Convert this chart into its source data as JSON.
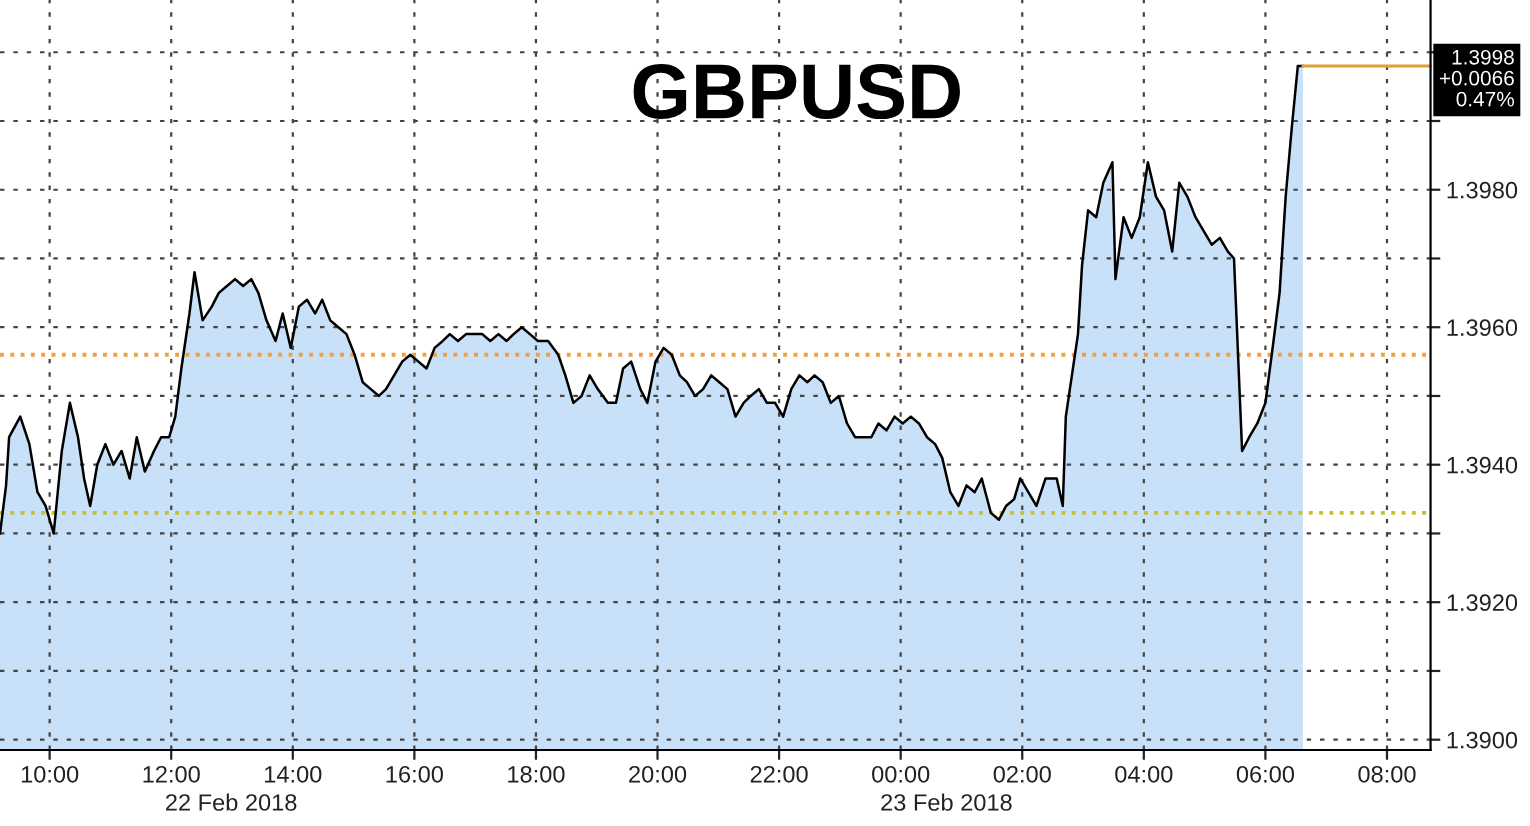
{
  "chart_data": {
    "type": "area",
    "title": "GBPUSD",
    "x": [
      "2018-02-22T09:11",
      "2018-02-22T09:17",
      "2018-02-22T09:20",
      "2018-02-22T09:31",
      "2018-02-22T09:40",
      "2018-02-22T09:48",
      "2018-02-22T09:56",
      "2018-02-22T10:04",
      "2018-02-22T10:12",
      "2018-02-22T10:20",
      "2018-02-22T10:28",
      "2018-02-22T10:34",
      "2018-02-22T10:40",
      "2018-02-22T10:47",
      "2018-02-22T10:55",
      "2018-02-22T11:03",
      "2018-02-22T11:11",
      "2018-02-22T11:19",
      "2018-02-22T11:26",
      "2018-02-22T11:34",
      "2018-02-22T11:43",
      "2018-02-22T11:50",
      "2018-02-22T11:58",
      "2018-02-22T12:04",
      "2018-02-22T12:10",
      "2018-02-22T12:18",
      "2018-02-22T12:23",
      "2018-02-22T12:31",
      "2018-02-22T12:40",
      "2018-02-22T12:47",
      "2018-02-22T12:55",
      "2018-02-22T13:03",
      "2018-02-22T13:11",
      "2018-02-22T13:19",
      "2018-02-22T13:26",
      "2018-02-22T13:34",
      "2018-02-22T13:43",
      "2018-02-22T13:50",
      "2018-02-22T13:58",
      "2018-02-22T14:06",
      "2018-02-22T14:14",
      "2018-02-22T14:22",
      "2018-02-22T14:29",
      "2018-02-22T14:37",
      "2018-02-22T14:45",
      "2018-02-22T14:53",
      "2018-02-22T15:01",
      "2018-02-22T15:09",
      "2018-02-22T15:17",
      "2018-02-22T15:25",
      "2018-02-22T15:32",
      "2018-02-22T15:40",
      "2018-02-22T15:48",
      "2018-02-22T15:56",
      "2018-02-22T16:04",
      "2018-02-22T16:12",
      "2018-02-22T16:20",
      "2018-02-22T16:28",
      "2018-02-22T16:35",
      "2018-02-22T16:43",
      "2018-02-22T16:51",
      "2018-02-22T16:59",
      "2018-02-22T17:07",
      "2018-02-22T17:15",
      "2018-02-22T17:23",
      "2018-02-22T17:31",
      "2018-02-22T17:38",
      "2018-02-22T17:46",
      "2018-02-22T17:54",
      "2018-02-22T18:02",
      "2018-02-22T18:12",
      "2018-02-22T18:22",
      "2018-02-22T18:29",
      "2018-02-22T18:37",
      "2018-02-22T18:45",
      "2018-02-22T18:53",
      "2018-02-22T19:01",
      "2018-02-22T19:11",
      "2018-02-22T19:19",
      "2018-02-22T19:26",
      "2018-02-22T19:34",
      "2018-02-22T19:43",
      "2018-02-22T19:50",
      "2018-02-22T19:58",
      "2018-02-22T20:06",
      "2018-02-22T20:14",
      "2018-02-22T20:22",
      "2018-02-22T20:29",
      "2018-02-22T20:37",
      "2018-02-22T20:45",
      "2018-02-22T20:53",
      "2018-02-22T21:01",
      "2018-02-22T21:09",
      "2018-02-22T21:17",
      "2018-02-22T21:25",
      "2018-02-22T21:32",
      "2018-02-22T21:40",
      "2018-02-22T21:48",
      "2018-02-22T21:56",
      "2018-02-22T22:04",
      "2018-02-22T22:12",
      "2018-02-22T22:20",
      "2018-02-22T22:28",
      "2018-02-22T22:35",
      "2018-02-22T22:43",
      "2018-02-22T22:51",
      "2018-02-22T22:59",
      "2018-02-22T23:07",
      "2018-02-22T23:15",
      "2018-02-22T23:23",
      "2018-02-22T23:31",
      "2018-02-22T23:38",
      "2018-02-22T23:46",
      "2018-02-22T23:54",
      "2018-02-23T00:02",
      "2018-02-23T00:10",
      "2018-02-23T00:18",
      "2018-02-23T00:26",
      "2018-02-23T00:34",
      "2018-02-23T00:41",
      "2018-02-23T00:49",
      "2018-02-23T00:57",
      "2018-02-23T01:05",
      "2018-02-23T01:13",
      "2018-02-23T01:20",
      "2018-02-23T01:29",
      "2018-02-23T01:37",
      "2018-02-23T01:44",
      "2018-02-23T01:52",
      "2018-02-23T01:58",
      "2018-02-23T02:06",
      "2018-02-23T02:14",
      "2018-02-23T02:23",
      "2018-02-23T02:34",
      "2018-02-23T02:40",
      "2018-02-23T02:43",
      "2018-02-23T02:49",
      "2018-02-23T02:55",
      "2018-02-23T02:59",
      "2018-02-23T03:05",
      "2018-02-23T03:13",
      "2018-02-23T03:20",
      "2018-02-23T03:29",
      "2018-02-23T03:32",
      "2018-02-23T03:40",
      "2018-02-23T03:48",
      "2018-02-23T03:56",
      "2018-02-23T04:04",
      "2018-02-23T04:12",
      "2018-02-23T04:20",
      "2018-02-23T04:28",
      "2018-02-23T04:35",
      "2018-02-23T04:43",
      "2018-02-23T04:51",
      "2018-02-23T04:59",
      "2018-02-23T05:07",
      "2018-02-23T05:15",
      "2018-02-23T05:23",
      "2018-02-23T05:29",
      "2018-02-23T05:37",
      "2018-02-23T05:44",
      "2018-02-23T05:52",
      "2018-02-23T06:00",
      "2018-02-23T06:08",
      "2018-02-23T06:14",
      "2018-02-23T06:20",
      "2018-02-23T06:26",
      "2018-02-23T06:32",
      "2018-02-23T06:37"
    ],
    "series": [
      {
        "color": "#c9e1f8",
        "values": [
          1.393,
          1.3937,
          1.3944,
          1.3947,
          1.3943,
          1.3936,
          1.3934,
          1.393,
          1.3942,
          1.3949,
          1.3944,
          1.3938,
          1.3934,
          1.394,
          1.3943,
          1.394,
          1.3942,
          1.3938,
          1.3944,
          1.3939,
          1.3942,
          1.3944,
          1.3944,
          1.3947,
          1.3954,
          1.3962,
          1.3968,
          1.3961,
          1.3963,
          1.3965,
          1.3966,
          1.3967,
          1.3966,
          1.3967,
          1.3965,
          1.3961,
          1.3958,
          1.3962,
          1.3957,
          1.3963,
          1.3964,
          1.3962,
          1.3964,
          1.3961,
          1.396,
          1.3959,
          1.3956,
          1.3952,
          1.3951,
          1.395,
          1.3951,
          1.3953,
          1.3955,
          1.3956,
          1.3955,
          1.3954,
          1.3957,
          1.3958,
          1.3959,
          1.3958,
          1.3959,
          1.3959,
          1.3959,
          1.3958,
          1.3959,
          1.3958,
          1.3959,
          1.396,
          1.3959,
          1.3958,
          1.3958,
          1.3956,
          1.3953,
          1.3949,
          1.395,
          1.3953,
          1.3951,
          1.3949,
          1.3949,
          1.3954,
          1.3955,
          1.3951,
          1.3949,
          1.3955,
          1.3957,
          1.3956,
          1.3953,
          1.3952,
          1.395,
          1.3951,
          1.3953,
          1.3952,
          1.3951,
          1.3947,
          1.3949,
          1.395,
          1.3951,
          1.3949,
          1.3949,
          1.3947,
          1.3951,
          1.3953,
          1.3952,
          1.3953,
          1.3952,
          1.3949,
          1.395,
          1.3946,
          1.3944,
          1.3944,
          1.3944,
          1.3946,
          1.3945,
          1.3947,
          1.3946,
          1.3947,
          1.3946,
          1.3944,
          1.3943,
          1.3941,
          1.3936,
          1.3934,
          1.3937,
          1.3936,
          1.3938,
          1.3933,
          1.3932,
          1.3934,
          1.3935,
          1.3938,
          1.3936,
          1.3934,
          1.3938,
          1.3938,
          1.3934,
          1.3947,
          1.3953,
          1.3959,
          1.3969,
          1.3977,
          1.3976,
          1.3981,
          1.3984,
          1.3967,
          1.3976,
          1.3973,
          1.3976,
          1.3984,
          1.3979,
          1.3977,
          1.3971,
          1.3981,
          1.3979,
          1.3976,
          1.3974,
          1.3972,
          1.3973,
          1.3971,
          1.397,
          1.3942,
          1.3944,
          1.3946,
          1.3949,
          1.3958,
          1.3965,
          1.3979,
          1.3989,
          1.3998,
          1.3998
        ]
      }
    ],
    "xlim": [
      "2018-02-22T09:11",
      "2018-02-23T08:43"
    ],
    "xticks": [
      {
        "value": "2018-02-22T10:00",
        "label": "10:00"
      },
      {
        "value": "2018-02-22T12:00",
        "label": "12:00"
      },
      {
        "value": "2018-02-22T14:00",
        "label": "14:00"
      },
      {
        "value": "2018-02-22T16:00",
        "label": "16:00"
      },
      {
        "value": "2018-02-22T18:00",
        "label": "18:00"
      },
      {
        "value": "2018-02-22T20:00",
        "label": "20:00"
      },
      {
        "value": "2018-02-22T22:00",
        "label": "22:00"
      },
      {
        "value": "2018-02-23T00:00",
        "label": "00:00"
      },
      {
        "value": "2018-02-23T02:00",
        "label": "02:00"
      },
      {
        "value": "2018-02-23T04:00",
        "label": "04:00"
      },
      {
        "value": "2018-02-23T06:00",
        "label": "06:00"
      },
      {
        "value": "2018-02-23T08:00",
        "label": "08:00"
      }
    ],
    "ylim": [
      1.38985,
      1.40076
    ],
    "yticks": [
      {
        "value": 1.39,
        "label": "1.3900"
      },
      {
        "value": 1.391,
        "label": null
      },
      {
        "value": 1.392,
        "label": "1.3920"
      },
      {
        "value": 1.393,
        "label": null
      },
      {
        "value": 1.394,
        "label": "1.3940"
      },
      {
        "value": 1.395,
        "label": null
      },
      {
        "value": 1.396,
        "label": "1.3960"
      },
      {
        "value": 1.397,
        "label": null
      },
      {
        "value": 1.398,
        "label": "1.3980"
      },
      {
        "value": 1.399,
        "label": null
      },
      {
        "value": 1.4,
        "label": null
      }
    ],
    "grid": true,
    "ref_lines": [
      {
        "axis": "y",
        "value": 1.3956,
        "color": "#f0a040",
        "line_style": "dotted"
      },
      {
        "axis": "y",
        "value": 1.3933,
        "color": "#c8c030",
        "line_style": "dotted"
      }
    ],
    "annotations": [
      {
        "text": "1.3998\n+0.0066\n0.47%",
        "x": "2018-02-23T06:37",
        "y": 1.3998
      },
      "22 Feb 2018",
      "23 Feb 2018"
    ]
  }
}
